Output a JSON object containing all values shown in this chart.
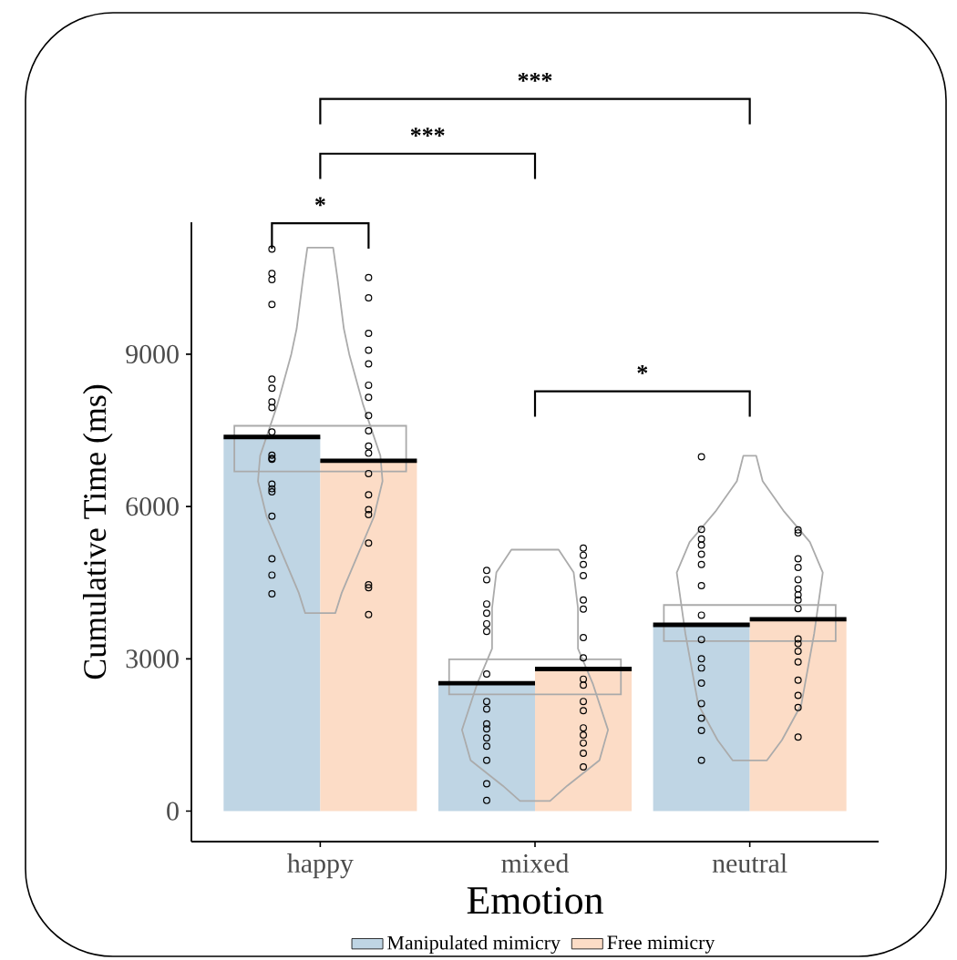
{
  "chart_data": {
    "type": "bar",
    "categories": [
      "happy",
      "mixed",
      "neutral"
    ],
    "xlabel": "Emotion",
    "ylabel": "Cumulative Time (ms)",
    "ylim": [
      -600,
      11600
    ],
    "yticks": [
      0,
      3000,
      6000,
      9000
    ],
    "legend": "bottom",
    "annotations": [
      "*",
      "***",
      "***",
      "*"
    ],
    "series": [
      {
        "name": "Manipulated mimicry",
        "color": "#bfd5e4",
        "values": [
          7370,
          2520,
          3670
        ]
      },
      {
        "name": "Free mimicry",
        "color": "#fcdcc6",
        "values": [
          6900,
          2800,
          3780
        ]
      },
      {
        "type": "bar",
        "color": "#aaaaaa",
        "base": [
          6690,
          2300,
          3350
        ],
        "values": [
          900,
          690,
          710
        ]
      },
      {
        "type": "scatter",
        "color": "#000000",
        "marker": "circle",
        "x": [
          "happy",
          "happy",
          "happy",
          "happy",
          "happy",
          "happy",
          "happy",
          "happy",
          "happy",
          "happy",
          "happy",
          "happy",
          "happy",
          "happy",
          "happy",
          "happy",
          "happy",
          "happy",
          "happy",
          "mixed",
          "mixed",
          "mixed",
          "mixed",
          "mixed",
          "mixed",
          "mixed",
          "mixed",
          "mixed",
          "mixed",
          "mixed",
          "mixed",
          "mixed",
          "mixed",
          "mixed",
          "mixed",
          "neutral",
          "neutral",
          "neutral",
          "neutral",
          "neutral",
          "neutral",
          "neutral",
          "neutral",
          "neutral",
          "neutral",
          "neutral",
          "neutral",
          "neutral",
          "neutral",
          "neutral",
          "neutral"
        ],
        "values": [
          11070,
          10590,
          10470,
          9980,
          8510,
          8330,
          8060,
          7950,
          7470,
          7010,
          6950,
          6930,
          6440,
          6350,
          6290,
          5810,
          4970,
          4650,
          4280,
          4740,
          4560,
          4080,
          3900,
          3690,
          3540,
          2700,
          2160,
          2010,
          1720,
          1620,
          1440,
          1280,
          1000,
          540,
          210,
          6980,
          5550,
          5360,
          5240,
          5060,
          4860,
          4440,
          3860,
          3380,
          3000,
          2820,
          2520,
          2120,
          1830,
          1590,
          1000
        ]
      },
      {
        "type": "scatter",
        "color": "#000000",
        "marker": "circle",
        "x": [
          "happy",
          "happy",
          "happy",
          "happy",
          "happy",
          "happy",
          "happy",
          "happy",
          "happy",
          "happy",
          "happy",
          "happy",
          "happy",
          "happy",
          "happy",
          "happy",
          "happy",
          "happy",
          "happy",
          "mixed",
          "mixed",
          "mixed",
          "mixed",
          "mixed",
          "mixed",
          "mixed",
          "mixed",
          "mixed",
          "mixed",
          "mixed",
          "mixed",
          "mixed",
          "mixed",
          "mixed",
          "mixed",
          "mixed",
          "neutral",
          "neutral",
          "neutral",
          "neutral",
          "neutral",
          "neutral",
          "neutral",
          "neutral",
          "neutral",
          "neutral",
          "neutral",
          "neutral",
          "neutral",
          "neutral",
          "neutral",
          "neutral",
          "neutral"
        ],
        "values": [
          10510,
          10110,
          9410,
          9080,
          8810,
          8390,
          8150,
          7790,
          7490,
          7190,
          7050,
          6650,
          6230,
          5940,
          5840,
          5280,
          4460,
          4400,
          3870,
          5180,
          5040,
          4860,
          4640,
          4160,
          3980,
          3420,
          3020,
          2600,
          2480,
          2160,
          1980,
          1640,
          1500,
          1340,
          1140,
          870,
          5540,
          5480,
          4970,
          4800,
          4560,
          4380,
          4260,
          4160,
          3990,
          3390,
          3300,
          3150,
          2940,
          2580,
          2280,
          2040,
          1460
        ]
      }
    ]
  }
}
